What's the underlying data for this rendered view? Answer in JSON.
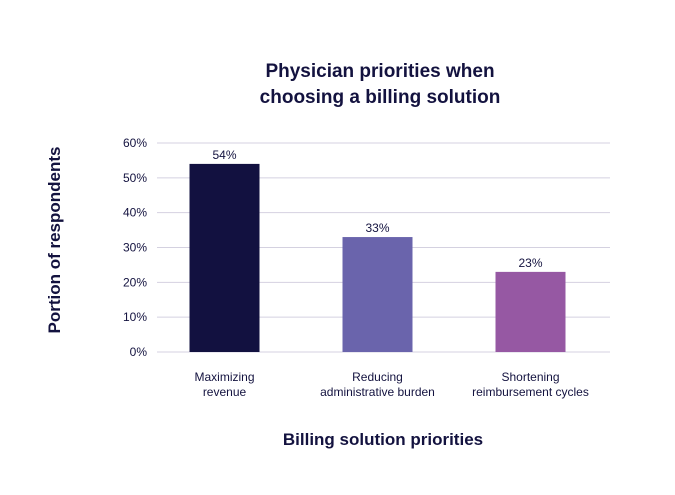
{
  "chart_data": {
    "type": "bar",
    "title": [
      "Physician priorities when",
      "choosing a billing solution"
    ],
    "xlabel": "Billing solution priorities",
    "ylabel": "Portion of respondents",
    "categories": [
      [
        "Maximizing",
        "revenue"
      ],
      [
        "Reducing",
        "administrative burden"
      ],
      [
        "Shortening",
        "reimbursement cycles"
      ]
    ],
    "values": [
      54,
      33,
      23
    ],
    "data_labels": [
      "54%",
      "33%",
      "23%"
    ],
    "bar_colors": [
      "#121140",
      "#6a64ac",
      "#9658a3"
    ],
    "ylim": [
      0,
      60
    ],
    "yticks": [
      0,
      10,
      20,
      30,
      40,
      50,
      60
    ],
    "ytick_labels": [
      "0%",
      "10%",
      "20%",
      "30%",
      "40%",
      "50%",
      "60%"
    ],
    "grid": true,
    "grid_color": "#d4d1e0"
  }
}
